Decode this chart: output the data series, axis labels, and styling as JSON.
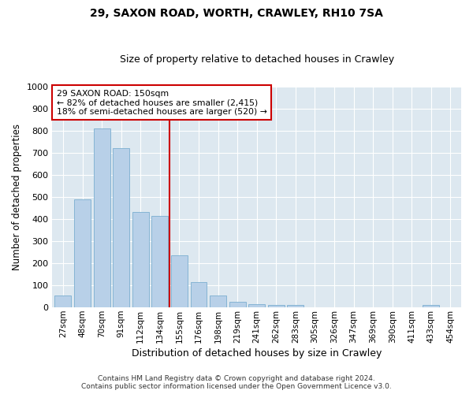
{
  "title1": "29, SAXON ROAD, WORTH, CRAWLEY, RH10 7SA",
  "title2": "Size of property relative to detached houses in Crawley",
  "xlabel": "Distribution of detached houses by size in Crawley",
  "ylabel": "Number of detached properties",
  "footer1": "Contains HM Land Registry data © Crown copyright and database right 2024.",
  "footer2": "Contains public sector information licensed under the Open Government Licence v3.0.",
  "annotation_line1": "29 SAXON ROAD: 150sqm",
  "annotation_line2": "← 82% of detached houses are smaller (2,415)",
  "annotation_line3": "18% of semi-detached houses are larger (520) →",
  "bar_color_normal": "#b8d0e8",
  "bar_edge_color": "#7aaed0",
  "ref_line_color": "#cc0000",
  "background_color": "#dde8f0",
  "ylim": [
    0,
    1000
  ],
  "yticks": [
    0,
    100,
    200,
    300,
    400,
    500,
    600,
    700,
    800,
    900,
    1000
  ],
  "categories": [
    "27sqm",
    "48sqm",
    "70sqm",
    "91sqm",
    "112sqm",
    "134sqm",
    "155sqm",
    "176sqm",
    "198sqm",
    "219sqm",
    "241sqm",
    "262sqm",
    "283sqm",
    "305sqm",
    "326sqm",
    "347sqm",
    "369sqm",
    "390sqm",
    "411sqm",
    "433sqm",
    "454sqm"
  ],
  "values": [
    55,
    490,
    810,
    720,
    430,
    415,
    235,
    115,
    55,
    25,
    15,
    13,
    13,
    0,
    0,
    0,
    0,
    0,
    0,
    13,
    0
  ],
  "ref_line_x": 5.5,
  "figsize": [
    6.0,
    5.0
  ],
  "dpi": 100
}
